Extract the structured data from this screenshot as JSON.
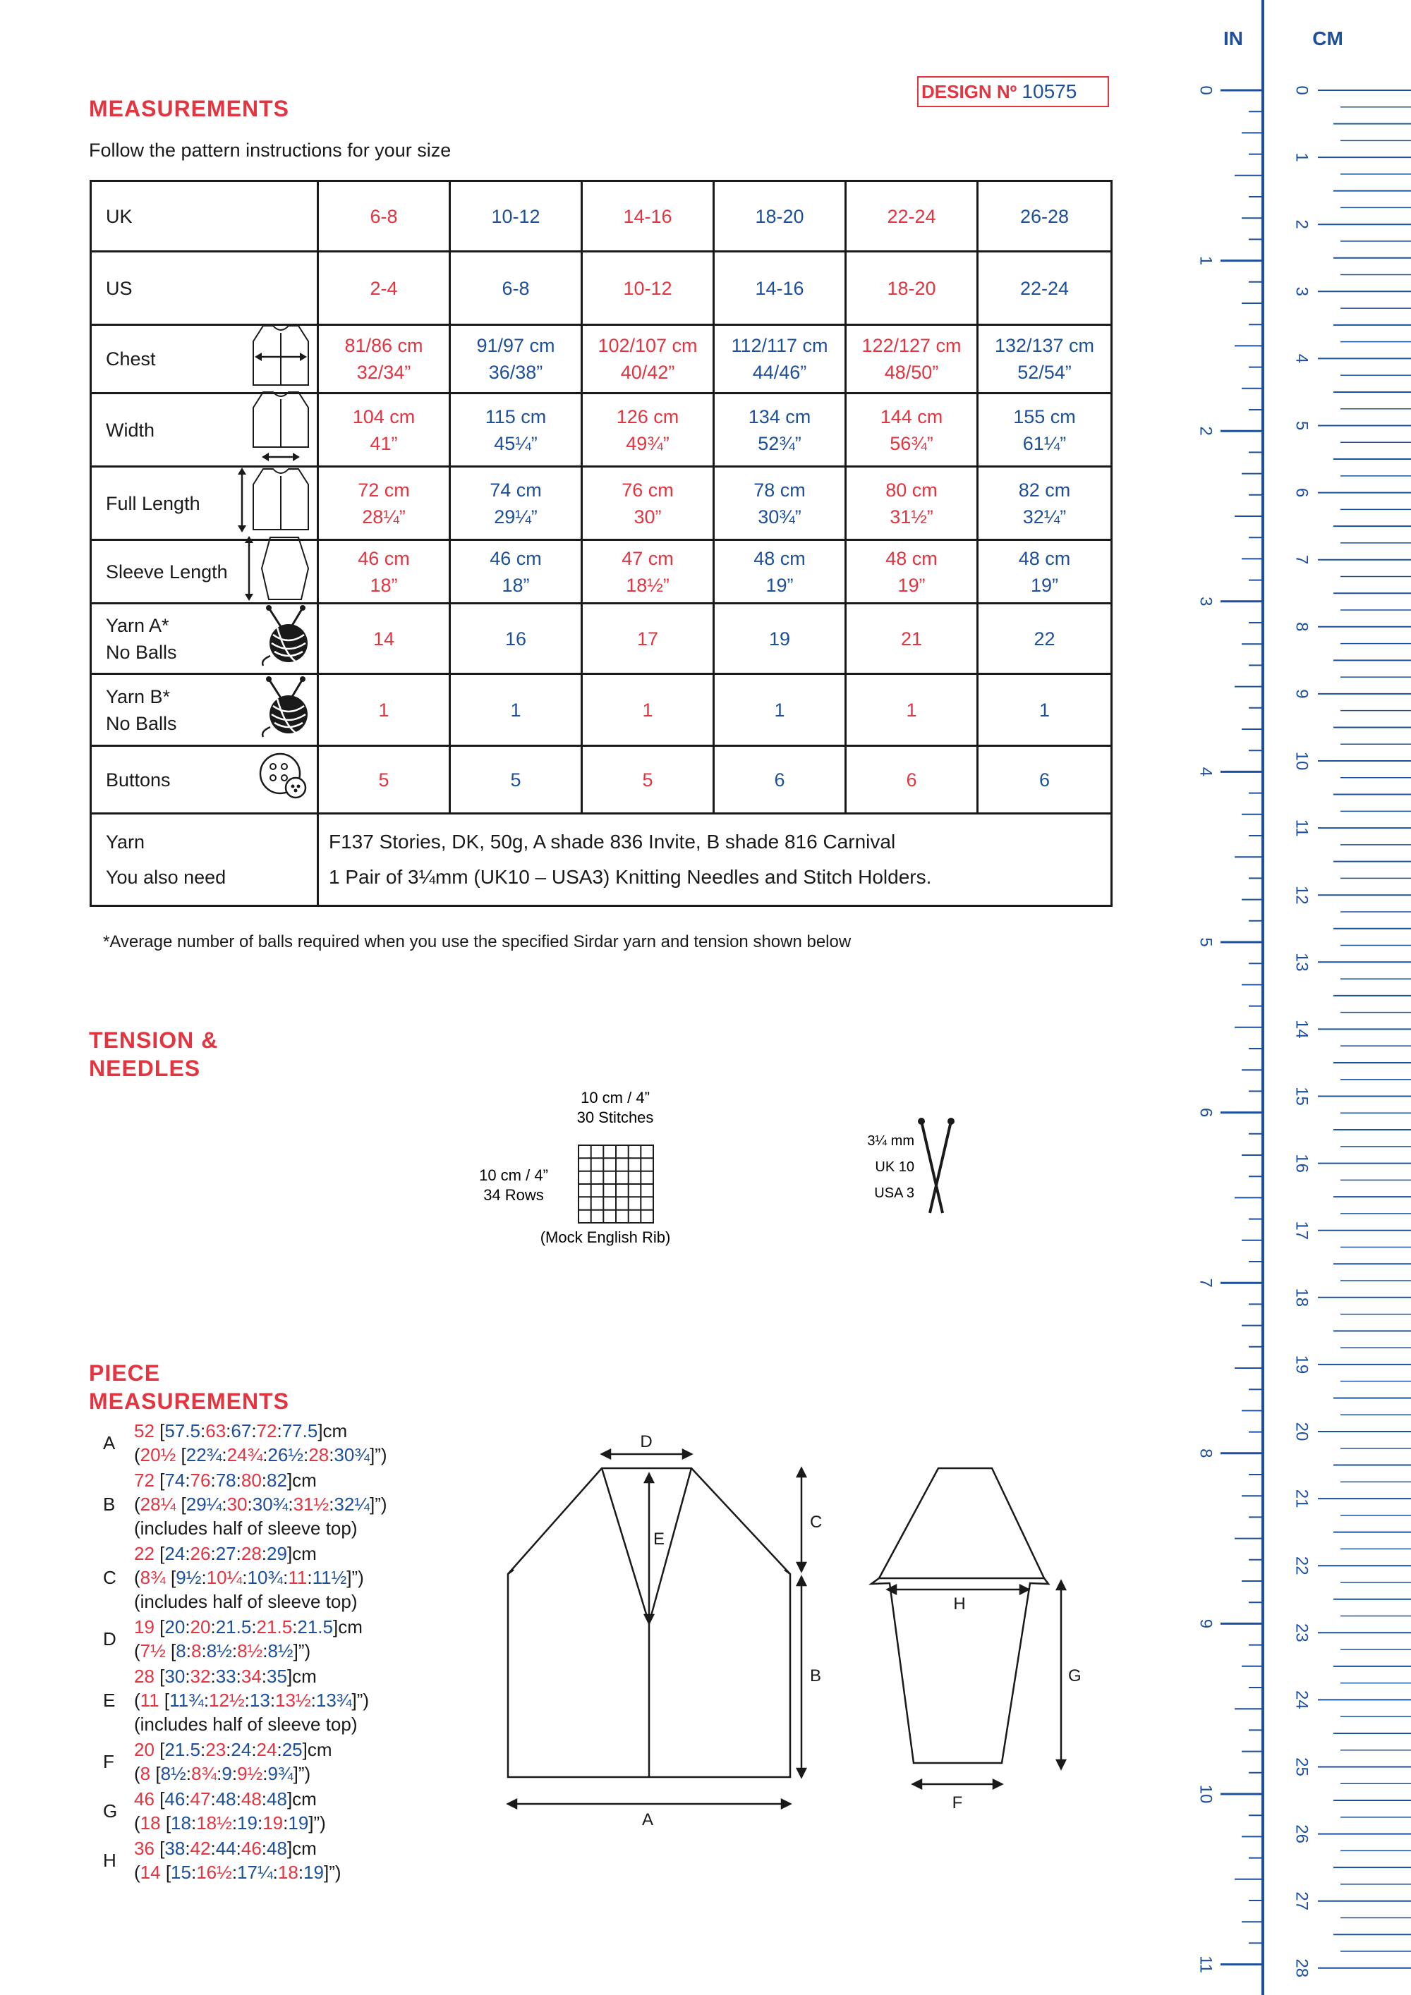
{
  "design": {
    "label": "DESIGN Nº",
    "number": "10575"
  },
  "headings": {
    "measurements": "MEASUREMENTS",
    "tension_1": "TENSION &",
    "tension_2": "NEEDLES",
    "piece_1": "PIECE",
    "piece_2": "MEASUREMENTS"
  },
  "subtitle": "Follow the pattern instructions for your size",
  "table": {
    "rows": [
      {
        "label": "UK",
        "cells": [
          "6-8",
          "10-12",
          "14-16",
          "18-20",
          "22-24",
          "26-28"
        ]
      },
      {
        "label": "US",
        "cells": [
          "2-4",
          "6-8",
          "10-12",
          "14-16",
          "18-20",
          "22-24"
        ]
      },
      {
        "label": "Chest",
        "icon": "chest-icon",
        "cells": [
          "81/86 cm",
          "91/97 cm",
          "102/107 cm",
          "112/117 cm",
          "122/127 cm",
          "132/137 cm"
        ],
        "cells2": [
          "32/34”",
          "36/38”",
          "40/42”",
          "44/46”",
          "48/50”",
          "52/54”"
        ]
      },
      {
        "label": "Width",
        "icon": "width-icon",
        "cells": [
          "104 cm",
          "115 cm",
          "126 cm",
          "134 cm",
          "144 cm",
          "155 cm"
        ],
        "cells2": [
          "41”",
          "45¼”",
          "49¾”",
          "52¾”",
          "56¾”",
          "61¼”"
        ]
      },
      {
        "label": "Full Length",
        "icon": "full-length-icon",
        "cells": [
          "72 cm",
          "74 cm",
          "76 cm",
          "78 cm",
          "80 cm",
          "82 cm"
        ],
        "cells2": [
          "28¼”",
          "29¼”",
          "30”",
          "30¾”",
          "31½”",
          "32¼”"
        ]
      },
      {
        "label": "Sleeve Length",
        "icon": "sleeve-length-icon",
        "cells": [
          "46 cm",
          "46 cm",
          "47 cm",
          "48 cm",
          "48 cm",
          "48 cm"
        ],
        "cells2": [
          "18”",
          "18”",
          "18½”",
          "19”",
          "19”",
          "19”"
        ]
      },
      {
        "label": "Yarn A*",
        "label2": "No Balls",
        "icon": "yarn-ball-icon",
        "cells": [
          "14",
          "16",
          "17",
          "19",
          "21",
          "22"
        ]
      },
      {
        "label": "Yarn B*",
        "label2": "No Balls",
        "icon": "yarn-ball-icon",
        "cells": [
          "1",
          "1",
          "1",
          "1",
          "1",
          "1"
        ]
      },
      {
        "label": "Buttons",
        "icon": "button-icon",
        "cells": [
          "5",
          "5",
          "5",
          "6",
          "6",
          "6"
        ]
      }
    ],
    "yarn_label": "Yarn",
    "yarn_value": "F137 Stories, DK, 50g, A shade 836 Invite, B shade 816 Carnival",
    "need_label": "You also need",
    "need_value": "1 Pair of 3¼mm (UK10 – USA3) Knitting Needles and Stitch Holders."
  },
  "footnote": "*Average number of balls required when you use the specified Sirdar yarn and tension shown below",
  "tension": {
    "width_label": "10 cm / 4”",
    "stitches": "30 Stitches",
    "height_label": "10 cm / 4”",
    "rows": "34 Rows",
    "stitch_name": "(Mock English Rib)",
    "needle_mm": "3¼ mm",
    "needle_uk": "UK 10",
    "needle_usa": "USA 3"
  },
  "pieces": [
    {
      "letter": "A",
      "line1": [
        "52 ",
        "[",
        "57.5",
        ":",
        "63",
        ":",
        "67",
        ":",
        "72",
        ":",
        "77.5",
        "]cm"
      ],
      "line2": [
        "(",
        "20½",
        " [",
        "22¾",
        ":",
        "24¾",
        ":",
        "26½",
        ":",
        "28",
        ":",
        "30¾",
        "]”)"
      ]
    },
    {
      "letter": "B",
      "line1": [
        "72 ",
        "[",
        "74",
        ":",
        "76",
        ":",
        "78",
        ":",
        "80",
        ":",
        "82",
        "]cm"
      ],
      "line2": [
        "(",
        "28¼",
        " [",
        "29¼",
        ":",
        "30",
        ":",
        "30¾",
        ":",
        "31½",
        ":",
        "32¼",
        "]”)"
      ],
      "note": "(includes half of sleeve top)"
    },
    {
      "letter": "C",
      "line1": [
        "22 ",
        "[",
        "24",
        ":",
        "26",
        ":",
        "27",
        ":",
        "28",
        ":",
        "29",
        "]cm"
      ],
      "line2": [
        "(",
        "8¾",
        " [",
        "9½",
        ":",
        "10¼",
        ":",
        "10¾",
        ":",
        "11",
        ":",
        "11½",
        "]”)"
      ],
      "note": "(includes half of sleeve top)"
    },
    {
      "letter": "D",
      "line1": [
        "19 ",
        "[",
        "20",
        ":",
        "20",
        ":",
        "21.5",
        ":",
        "21.5",
        ":",
        "21.5",
        "]cm"
      ],
      "line2": [
        "(",
        "7½",
        " [",
        "8",
        ":",
        "8",
        ":",
        "8½",
        ":",
        "8½",
        ":",
        "8½",
        "]”)"
      ]
    },
    {
      "letter": "E",
      "line1": [
        "28 ",
        "[",
        "30",
        ":",
        "32",
        ":",
        "33",
        ":",
        "34",
        ":",
        "35",
        "]cm"
      ],
      "line2": [
        "(",
        "11",
        " [",
        "11¾",
        ":",
        "12½",
        ":",
        "13",
        ":",
        "13½",
        ":",
        "13¾",
        "]”)"
      ],
      "note": "(includes half of sleeve top)"
    },
    {
      "letter": "F",
      "line1": [
        "20 ",
        "[",
        "21.5",
        ":",
        "23",
        ":",
        "24",
        ":",
        "24",
        ":",
        "25",
        "]cm"
      ],
      "line2": [
        "(",
        "8",
        " [",
        "8½",
        ":",
        "8¾",
        ":",
        "9",
        ":",
        "9½",
        ":",
        "9¾",
        "]”)"
      ]
    },
    {
      "letter": "G",
      "line1": [
        "46 ",
        "[",
        "46",
        ":",
        "47",
        ":",
        "48",
        ":",
        "48",
        ":",
        "48",
        "]cm"
      ],
      "line2": [
        "(",
        "18",
        " [",
        "18",
        ":",
        "18½",
        ":",
        "19",
        ":",
        "19",
        ":",
        "19",
        "]”)"
      ]
    },
    {
      "letter": "H",
      "line1": [
        "36 ",
        "[",
        "38",
        ":",
        "42",
        ":",
        "44",
        ":",
        "46",
        ":",
        "48",
        "]cm"
      ],
      "line2": [
        "(",
        "14",
        " [",
        "15",
        ":",
        "16½",
        ":",
        "17¼",
        ":",
        "18",
        ":",
        "19",
        "]”)"
      ]
    }
  ],
  "diagram_labels": {
    "A": "A",
    "B": "B",
    "C": "C",
    "D": "D",
    "E": "E",
    "F": "F",
    "G": "G",
    "H": "H"
  },
  "ruler": {
    "in_label": "IN",
    "cm_label": "CM",
    "in_numbers": [
      "0",
      "1",
      "2",
      "3",
      "4",
      "5",
      "6",
      "7",
      "8",
      "9",
      "10",
      "11"
    ],
    "cm_numbers": [
      "0",
      "1",
      "2",
      "3",
      "4",
      "5",
      "6",
      "7",
      "8",
      "9",
      "10",
      "11",
      "12",
      "13",
      "14",
      "15",
      "16",
      "17",
      "18",
      "19",
      "20",
      "21",
      "22",
      "23",
      "24",
      "25",
      "26",
      "27",
      "28"
    ]
  },
  "colors": {
    "red": "#e3343f",
    "blue": "#1c4f9c",
    "black": "#1a1a1a"
  }
}
